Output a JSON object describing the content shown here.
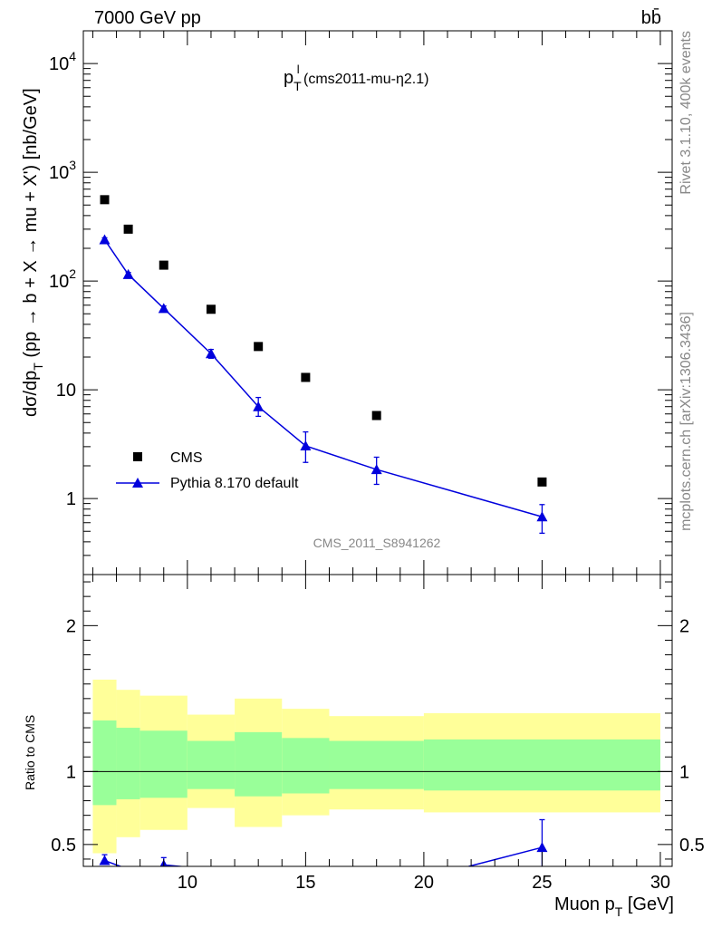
{
  "header": {
    "energy_label": "7000 GeV pp",
    "process_label": "bb̄"
  },
  "side_labels": {
    "rivet": "Rivet 3.1.10,  400k events",
    "source": "mcplots.cern.ch [arXiv:1306.3436]"
  },
  "chart_data": [
    {
      "type": "scatter",
      "title": "p_T^l (cms2011-mu-η2.1)",
      "title_main": "p",
      "title_sub": "T",
      "title_sup": "l",
      "title_rest": " (cms2011-mu-η2.1)",
      "ylabel": "dσ/dp_T (pp → b + X → mu + X') [nb/GeV]",
      "ylabel_parts": {
        "a": "dσ/dp",
        "sub": "T",
        "b": " (pp → b + X → mu + X') [nb/GeV]"
      },
      "yscale": "log",
      "ylim": [
        0.2,
        20000
      ],
      "xlim": [
        5.6,
        30.5
      ],
      "y_ticks": [
        {
          "value": 1,
          "base": "1",
          "exp": ""
        },
        {
          "value": 10,
          "base": "10",
          "exp": ""
        },
        {
          "value": 100,
          "base": "10",
          "exp": "2"
        },
        {
          "value": 1000,
          "base": "10",
          "exp": "3"
        },
        {
          "value": 10000,
          "base": "10",
          "exp": "4"
        }
      ],
      "legend_position": "lower-left",
      "series": [
        {
          "name": "CMS",
          "marker": "square",
          "color": "#000000",
          "points": [
            {
              "x": 6.5,
              "y": 560
            },
            {
              "x": 7.5,
              "y": 300
            },
            {
              "x": 9,
              "y": 140
            },
            {
              "x": 11,
              "y": 55
            },
            {
              "x": 13,
              "y": 25
            },
            {
              "x": 15,
              "y": 13
            },
            {
              "x": 18,
              "y": 5.8
            },
            {
              "x": 25,
              "y": 1.42
            }
          ]
        },
        {
          "name": "Pythia 8.170 default",
          "marker": "triangle",
          "color": "#0000dd",
          "points": [
            {
              "x": 6.5,
              "y": 240,
              "ylo": 230,
              "yhi": 250
            },
            {
              "x": 7.5,
              "y": 115,
              "ylo": 110,
              "yhi": 120
            },
            {
              "x": 9,
              "y": 56,
              "ylo": 53,
              "yhi": 59
            },
            {
              "x": 11,
              "y": 21.5,
              "ylo": 19.5,
              "yhi": 23.5
            },
            {
              "x": 13,
              "y": 7,
              "ylo": 5.7,
              "yhi": 8.5
            },
            {
              "x": 15,
              "y": 3.05,
              "ylo": 2.15,
              "yhi": 4.1
            },
            {
              "x": 18,
              "y": 1.85,
              "ylo": 1.35,
              "yhi": 2.4
            },
            {
              "x": 25,
              "y": 0.68,
              "ylo": 0.48,
              "yhi": 0.88
            }
          ]
        }
      ],
      "watermark": "CMS_2011_S8941262"
    },
    {
      "type": "area",
      "ylabel": "Ratio to CMS",
      "xlabel": "Muon p_T [GeV]",
      "xlabel_parts": {
        "a": "Muon p",
        "sub": "T",
        "b": " [GeV]"
      },
      "xlim": [
        5.6,
        30.5
      ],
      "ylim": [
        0.35,
        2.35
      ],
      "x_ticks": [
        10,
        15,
        20,
        25,
        30
      ],
      "y_ticks": [
        0.5,
        1,
        2
      ],
      "reference_line": 1,
      "bands": [
        {
          "x0": 6,
          "x1": 7,
          "inner": [
            0.77,
            1.35
          ],
          "outer": [
            0.44,
            1.63
          ]
        },
        {
          "x0": 7,
          "x1": 8,
          "inner": [
            0.81,
            1.3
          ],
          "outer": [
            0.55,
            1.56
          ]
        },
        {
          "x0": 8,
          "x1": 10,
          "inner": [
            0.82,
            1.28
          ],
          "outer": [
            0.6,
            1.52
          ]
        },
        {
          "x0": 10,
          "x1": 12,
          "inner": [
            0.88,
            1.21
          ],
          "outer": [
            0.75,
            1.39
          ]
        },
        {
          "x0": 12,
          "x1": 14,
          "inner": [
            0.83,
            1.27
          ],
          "outer": [
            0.62,
            1.5
          ]
        },
        {
          "x0": 14,
          "x1": 16,
          "inner": [
            0.85,
            1.23
          ],
          "outer": [
            0.7,
            1.43
          ]
        },
        {
          "x0": 16,
          "x1": 20,
          "inner": [
            0.88,
            1.21
          ],
          "outer": [
            0.74,
            1.38
          ]
        },
        {
          "x0": 20,
          "x1": 30,
          "inner": [
            0.87,
            1.22
          ],
          "outer": [
            0.72,
            1.4
          ]
        }
      ],
      "band_colors": {
        "inner": "#99ff99",
        "outer": "#ffff99"
      },
      "series": [
        {
          "name": "Pythia 8.170 default",
          "color": "#0000dd",
          "points": [
            {
              "x": 6.5,
              "y": 0.39,
              "ylo": 0.36,
              "yhi": 0.43
            },
            {
              "x": 7.5,
              "y": 0.33
            },
            {
              "x": 9,
              "y": 0.36,
              "ylo": 0.33,
              "yhi": 0.41
            },
            {
              "x": 11,
              "y": 0.33
            },
            {
              "x": 21.9,
              "y": 0.35
            },
            {
              "x": 25,
              "y": 0.48,
              "ylo": 0.34,
              "yhi": 0.67
            }
          ]
        }
      ]
    }
  ]
}
